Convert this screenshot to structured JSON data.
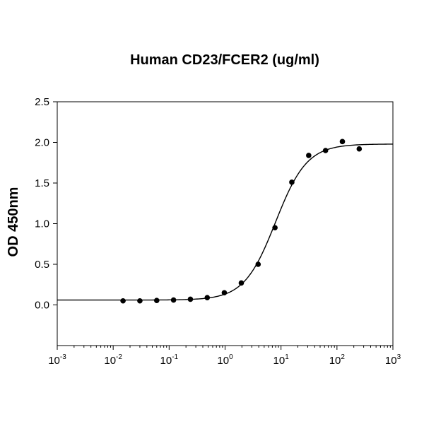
{
  "chart_data": {
    "type": "scatter",
    "title": "Human CD23/FCER2 (ug/ml)",
    "xlabel": "",
    "ylabel": "OD 450nm",
    "x_scale": "log",
    "xlim": [
      0.001,
      1000
    ],
    "ylim": [
      -0.5,
      2.5
    ],
    "x_ticks": [
      {
        "base": "10",
        "exp": "-3",
        "value": 0.001
      },
      {
        "base": "10",
        "exp": "-2",
        "value": 0.01
      },
      {
        "base": "10",
        "exp": "-1",
        "value": 0.1
      },
      {
        "base": "10",
        "exp": "0",
        "value": 1
      },
      {
        "base": "10",
        "exp": "1",
        "value": 10
      },
      {
        "base": "10",
        "exp": "2",
        "value": 100
      },
      {
        "base": "10",
        "exp": "3",
        "value": 1000
      }
    ],
    "y_ticks": [
      {
        "label": "0.0",
        "value": 0.0
      },
      {
        "label": "0.5",
        "value": 0.5
      },
      {
        "label": "1.0",
        "value": 1.0
      },
      {
        "label": "1.5",
        "value": 1.5
      },
      {
        "label": "2.0",
        "value": 2.0
      },
      {
        "label": "2.5",
        "value": 2.5
      }
    ],
    "grid": false,
    "legend": "none",
    "points": [
      {
        "x": 0.015,
        "y": 0.05
      },
      {
        "x": 0.03,
        "y": 0.05
      },
      {
        "x": 0.06,
        "y": 0.055
      },
      {
        "x": 0.12,
        "y": 0.06
      },
      {
        "x": 0.24,
        "y": 0.07
      },
      {
        "x": 0.48,
        "y": 0.09
      },
      {
        "x": 0.97,
        "y": 0.15
      },
      {
        "x": 1.95,
        "y": 0.27
      },
      {
        "x": 3.9,
        "y": 0.5
      },
      {
        "x": 7.8,
        "y": 0.95
      },
      {
        "x": 15.6,
        "y": 1.51
      },
      {
        "x": 31.25,
        "y": 1.84
      },
      {
        "x": 62.5,
        "y": 1.9
      },
      {
        "x": 125,
        "y": 2.01
      },
      {
        "x": 250,
        "y": 1.92
      }
    ],
    "fit_curve": {
      "model": "4PL",
      "bottom": 0.06,
      "top": 1.98,
      "ec50": 8.0,
      "hill": 1.55
    },
    "colors": {
      "marker": "#000000",
      "line": "#000000",
      "axis": "#000000",
      "background": "#ffffff"
    }
  }
}
